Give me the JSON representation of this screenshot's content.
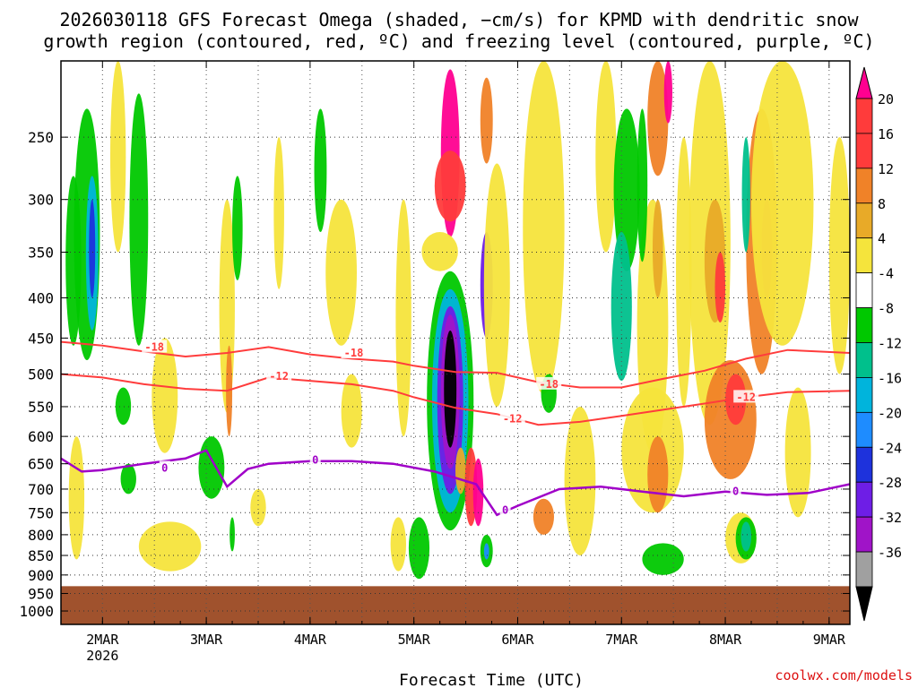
{
  "chart_data": {
    "type": "heatmap",
    "title_line1": "2026030118 GFS Forecast Omega (shaded, −cm/s) for KPMD with dendritic snow",
    "title_line2": "growth region (contoured, red, ºC) and freezing level (contoured, purple, ºC)",
    "xlabel": "Forecast Time (UTC)",
    "ylabel": "",
    "credit": "coolwx.com/models",
    "x_range_days": [
      1.6,
      9.2
    ],
    "y_range_hpa": [
      200,
      1040
    ],
    "x_ticks": [
      {
        "day": 2,
        "label": "2MAR",
        "sublabel": "2026"
      },
      {
        "day": 3,
        "label": "3MAR",
        "sublabel": ""
      },
      {
        "day": 4,
        "label": "4MAR",
        "sublabel": ""
      },
      {
        "day": 5,
        "label": "5MAR",
        "sublabel": ""
      },
      {
        "day": 6,
        "label": "6MAR",
        "sublabel": ""
      },
      {
        "day": 7,
        "label": "7MAR",
        "sublabel": ""
      },
      {
        "day": 8,
        "label": "8MAR",
        "sublabel": ""
      },
      {
        "day": 9,
        "label": "9MAR",
        "sublabel": ""
      }
    ],
    "y_ticks": [
      {
        "p": 250,
        "label": "250"
      },
      {
        "p": 300,
        "label": "300"
      },
      {
        "p": 350,
        "label": "350"
      },
      {
        "p": 400,
        "label": "400"
      },
      {
        "p": 450,
        "label": "450"
      },
      {
        "p": 500,
        "label": "500"
      },
      {
        "p": 550,
        "label": "550"
      },
      {
        "p": 600,
        "label": "600"
      },
      {
        "p": 650,
        "label": "650"
      },
      {
        "p": 700,
        "label": "700"
      },
      {
        "p": 750,
        "label": "750"
      },
      {
        "p": 800,
        "label": "800"
      },
      {
        "p": 850,
        "label": "850"
      },
      {
        "p": 900,
        "label": "900"
      },
      {
        "p": 950,
        "label": "950"
      },
      {
        "p": 1000,
        "label": "1000"
      }
    ],
    "surface_pressure_hpa": 930,
    "surface_color": "#a0522d",
    "colorbar": {
      "levels": [
        {
          "label": "20",
          "color": "#ff0090"
        },
        {
          "label": "16",
          "color": "#ff3b3b"
        },
        {
          "label": "12",
          "color": "#f08228"
        },
        {
          "label": "8",
          "color": "#e8aa28"
        },
        {
          "label": "4",
          "color": "#f5e43c"
        },
        {
          "label": "-4",
          "color": "#ffffff"
        },
        {
          "label": "-8",
          "color": "#00c800"
        },
        {
          "label": "-12",
          "color": "#00c08c"
        },
        {
          "label": "-16",
          "color": "#00b4dc"
        },
        {
          "label": "-20",
          "color": "#1e8cff"
        },
        {
          "label": "-24",
          "color": "#1e32dc"
        },
        {
          "label": "-28",
          "color": "#6e1ee6"
        },
        {
          "label": "-32",
          "color": "#a014c8"
        },
        {
          "label": "-36",
          "color": "#a0a0a0"
        }
      ],
      "top_arrow_color": "#ff0090",
      "bottom_arrow_color": "#000000",
      "bottom_segment_color": "#000000"
    },
    "omega_patches": [
      {
        "day": 5.35,
        "p": 205,
        "w": 0.18,
        "h": 130,
        "value": 20
      },
      {
        "day": 5.7,
        "p": 210,
        "w": 0.12,
        "h": 60,
        "value": 12
      },
      {
        "day": 5.35,
        "p": 260,
        "w": 0.3,
        "h": 60,
        "value": 16
      },
      {
        "day": 5.25,
        "p": 330,
        "w": 0.35,
        "h": 40,
        "value": 4
      },
      {
        "day": 5.35,
        "p": 370,
        "w": 0.45,
        "h": 420,
        "value": -8
      },
      {
        "day": 5.35,
        "p": 390,
        "w": 0.35,
        "h": 360,
        "value": -16
      },
      {
        "day": 5.35,
        "p": 410,
        "w": 0.25,
        "h": 300,
        "value": -28
      },
      {
        "day": 5.35,
        "p": 420,
        "w": 0.18,
        "h": 240,
        "value": -32
      },
      {
        "day": 5.35,
        "p": 440,
        "w": 0.12,
        "h": 180,
        "value": -36
      },
      {
        "day": 5.45,
        "p": 620,
        "w": 0.1,
        "h": 90,
        "value": 8
      },
      {
        "day": 5.55,
        "p": 620,
        "w": 0.12,
        "h": 160,
        "value": 16
      },
      {
        "day": 5.62,
        "p": 640,
        "w": 0.1,
        "h": 140,
        "value": 20
      },
      {
        "day": 5.7,
        "p": 330,
        "w": 0.12,
        "h": 120,
        "value": -28
      },
      {
        "day": 5.8,
        "p": 270,
        "w": 0.25,
        "h": 280,
        "value": 4
      },
      {
        "day": 4.9,
        "p": 300,
        "w": 0.15,
        "h": 300,
        "value": 4
      },
      {
        "day": 4.85,
        "p": 760,
        "w": 0.15,
        "h": 130,
        "value": 4
      },
      {
        "day": 5.05,
        "p": 760,
        "w": 0.2,
        "h": 150,
        "value": -8
      },
      {
        "day": 5.7,
        "p": 800,
        "w": 0.12,
        "h": 80,
        "value": -8
      },
      {
        "day": 5.7,
        "p": 820,
        "w": 0.05,
        "h": 40,
        "value": -20
      },
      {
        "day": 6.25,
        "p": 720,
        "w": 0.2,
        "h": 80,
        "value": 12
      },
      {
        "day": 6.25,
        "p": 200,
        "w": 0.4,
        "h": 330,
        "value": 4
      },
      {
        "day": 6.3,
        "p": 500,
        "w": 0.15,
        "h": 60,
        "value": -8
      },
      {
        "day": 6.6,
        "p": 550,
        "w": 0.3,
        "h": 300,
        "value": 4
      },
      {
        "day": 6.85,
        "p": 200,
        "w": 0.2,
        "h": 150,
        "value": 4
      },
      {
        "day": 7.05,
        "p": 230,
        "w": 0.25,
        "h": 140,
        "value": -8
      },
      {
        "day": 7.0,
        "p": 330,
        "w": 0.2,
        "h": 180,
        "value": -12
      },
      {
        "day": 7.3,
        "p": 300,
        "w": 0.3,
        "h": 330,
        "value": 4
      },
      {
        "day": 7.35,
        "p": 200,
        "w": 0.2,
        "h": 80,
        "value": 12
      },
      {
        "day": 7.45,
        "p": 200,
        "w": 0.08,
        "h": 40,
        "value": 20
      },
      {
        "day": 7.35,
        "p": 300,
        "w": 0.1,
        "h": 100,
        "value": 8
      },
      {
        "day": 7.2,
        "p": 230,
        "w": 0.1,
        "h": 130,
        "value": -8
      },
      {
        "day": 7.6,
        "p": 250,
        "w": 0.15,
        "h": 300,
        "value": 4
      },
      {
        "day": 7.85,
        "p": 200,
        "w": 0.4,
        "h": 380,
        "value": 4
      },
      {
        "day": 7.9,
        "p": 300,
        "w": 0.2,
        "h": 130,
        "value": 8
      },
      {
        "day": 7.95,
        "p": 350,
        "w": 0.1,
        "h": 80,
        "value": 16
      },
      {
        "day": 8.35,
        "p": 230,
        "w": 0.3,
        "h": 270,
        "value": 12
      },
      {
        "day": 8.4,
        "p": 300,
        "w": 0.1,
        "h": 100,
        "value": 16
      },
      {
        "day": 8.55,
        "p": 200,
        "w": 0.6,
        "h": 260,
        "value": 4
      },
      {
        "day": 8.2,
        "p": 250,
        "w": 0.08,
        "h": 100,
        "value": -12
      },
      {
        "day": 9.1,
        "p": 250,
        "w": 0.2,
        "h": 250,
        "value": 4
      },
      {
        "day": 8.05,
        "p": 480,
        "w": 0.5,
        "h": 200,
        "value": 12
      },
      {
        "day": 8.1,
        "p": 500,
        "w": 0.2,
        "h": 80,
        "value": 16
      },
      {
        "day": 7.3,
        "p": 520,
        "w": 0.6,
        "h": 230,
        "value": 4
      },
      {
        "day": 7.35,
        "p": 600,
        "w": 0.2,
        "h": 150,
        "value": 12
      },
      {
        "day": 8.15,
        "p": 750,
        "w": 0.3,
        "h": 120,
        "value": 4
      },
      {
        "day": 8.2,
        "p": 760,
        "w": 0.2,
        "h": 100,
        "value": -8
      },
      {
        "day": 8.2,
        "p": 770,
        "w": 0.1,
        "h": 70,
        "value": -12
      },
      {
        "day": 7.4,
        "p": 820,
        "w": 0.4,
        "h": 80,
        "value": -8
      },
      {
        "day": 8.7,
        "p": 520,
        "w": 0.25,
        "h": 240,
        "value": 4
      },
      {
        "day": 1.85,
        "p": 230,
        "w": 0.25,
        "h": 250,
        "value": -8
      },
      {
        "day": 1.9,
        "p": 280,
        "w": 0.12,
        "h": 160,
        "value": -16
      },
      {
        "day": 1.9,
        "p": 300,
        "w": 0.06,
        "h": 100,
        "value": -24
      },
      {
        "day": 1.72,
        "p": 280,
        "w": 0.15,
        "h": 180,
        "value": -8
      },
      {
        "day": 1.75,
        "p": 600,
        "w": 0.15,
        "h": 260,
        "value": 4
      },
      {
        "day": 2.15,
        "p": 200,
        "w": 0.15,
        "h": 150,
        "value": 4
      },
      {
        "day": 2.35,
        "p": 220,
        "w": 0.18,
        "h": 240,
        "value": -8
      },
      {
        "day": 2.6,
        "p": 450,
        "w": 0.25,
        "h": 180,
        "value": 4
      },
      {
        "day": 3.2,
        "p": 300,
        "w": 0.15,
        "h": 260,
        "value": 4
      },
      {
        "day": 3.22,
        "p": 460,
        "w": 0.06,
        "h": 140,
        "value": 12
      },
      {
        "day": 3.3,
        "p": 280,
        "w": 0.1,
        "h": 100,
        "value": -8
      },
      {
        "day": 3.05,
        "p": 600,
        "w": 0.25,
        "h": 120,
        "value": -8
      },
      {
        "day": 3.25,
        "p": 760,
        "w": 0.05,
        "h": 80,
        "value": -8
      },
      {
        "day": 2.65,
        "p": 770,
        "w": 0.6,
        "h": 120,
        "value": 4
      },
      {
        "day": 3.5,
        "p": 700,
        "w": 0.15,
        "h": 80,
        "value": 4
      },
      {
        "day": 3.7,
        "p": 250,
        "w": 0.1,
        "h": 140,
        "value": 4
      },
      {
        "day": 4.1,
        "p": 230,
        "w": 0.12,
        "h": 100,
        "value": -8
      },
      {
        "day": 4.3,
        "p": 300,
        "w": 0.3,
        "h": 160,
        "value": 4
      },
      {
        "day": 4.4,
        "p": 500,
        "w": 0.2,
        "h": 120,
        "value": 4
      },
      {
        "day": 2.2,
        "p": 520,
        "w": 0.15,
        "h": 60,
        "value": -8
      },
      {
        "day": 2.25,
        "p": 650,
        "w": 0.15,
        "h": 60,
        "value": -8
      }
    ],
    "dgz_contours": [
      {
        "level": -18,
        "label": "-18",
        "color": "#ff3c3c",
        "days": [
          1.6,
          2.0,
          2.4,
          2.8,
          3.2,
          3.6,
          4.0,
          4.4,
          4.8,
          5.0,
          5.4,
          5.8,
          6.2,
          6.6,
          7.0,
          7.4,
          7.8,
          8.2,
          8.6,
          9.2
        ],
        "p": [
          455,
          460,
          468,
          475,
          470,
          462,
          472,
          478,
          482,
          488,
          497,
          498,
          512,
          520,
          520,
          507,
          495,
          478,
          466,
          470
        ]
      },
      {
        "level": -12,
        "label": "-12",
        "color": "#ff3c3c",
        "days": [
          1.6,
          2.0,
          2.4,
          2.8,
          3.2,
          3.6,
          4.0,
          4.4,
          4.8,
          5.0,
          5.4,
          5.8,
          6.2,
          6.6,
          7.0,
          7.4,
          7.8,
          8.2,
          8.6,
          9.2
        ],
        "p": [
          500,
          505,
          515,
          522,
          525,
          505,
          510,
          515,
          525,
          535,
          552,
          562,
          580,
          575,
          565,
          555,
          545,
          535,
          527,
          525
        ]
      }
    ],
    "freezing_level": {
      "level": 0,
      "label": "0",
      "color": "#a000c8",
      "days": [
        1.6,
        1.8,
        2.0,
        2.4,
        2.8,
        3.0,
        3.2,
        3.4,
        3.6,
        4.0,
        4.4,
        4.8,
        5.2,
        5.6,
        5.8,
        6.0,
        6.4,
        6.8,
        7.2,
        7.6,
        8.0,
        8.4,
        8.8,
        9.2
      ],
      "p": [
        640,
        665,
        662,
        650,
        640,
        625,
        695,
        660,
        650,
        645,
        645,
        650,
        665,
        690,
        755,
        735,
        700,
        695,
        705,
        715,
        705,
        712,
        708,
        690
      ]
    },
    "contour_labels": [
      {
        "text": "-18",
        "day": 2.5,
        "p": 462,
        "color": "#ff3c3c"
      },
      {
        "text": "-18",
        "day": 4.42,
        "p": 470,
        "color": "#ff3c3c"
      },
      {
        "text": "-18",
        "day": 6.3,
        "p": 515,
        "color": "#ff3c3c"
      },
      {
        "text": "-12",
        "day": 3.7,
        "p": 503,
        "color": "#ff3c3c"
      },
      {
        "text": "-12",
        "day": 5.95,
        "p": 570,
        "color": "#ff3c3c"
      },
      {
        "text": "-12",
        "day": 8.2,
        "p": 535,
        "color": "#ff3c3c"
      },
      {
        "text": "0",
        "day": 2.6,
        "p": 658,
        "color": "#a000c8"
      },
      {
        "text": "0",
        "day": 4.05,
        "p": 643,
        "color": "#a000c8"
      },
      {
        "text": "0",
        "day": 5.88,
        "p": 745,
        "color": "#a000c8"
      },
      {
        "text": "0",
        "day": 8.1,
        "p": 705,
        "color": "#a000c8"
      }
    ]
  }
}
